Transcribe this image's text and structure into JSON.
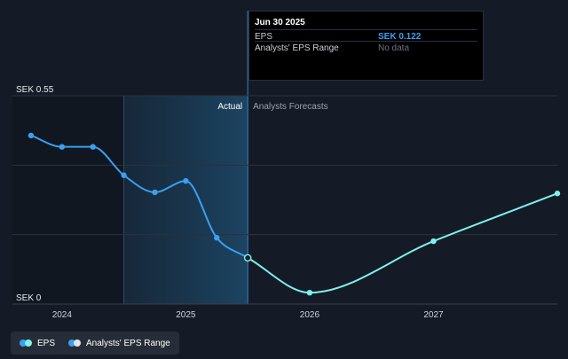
{
  "chart_data": {
    "type": "line",
    "currency": "SEK",
    "y_ticks": [
      {
        "value": 0.55,
        "label": "SEK 0.55"
      },
      {
        "value": 0,
        "label": "SEK 0"
      }
    ],
    "ylim": [
      0,
      0.55
    ],
    "x_ticks": [
      {
        "value": 2024,
        "label": "2024"
      },
      {
        "value": 2025,
        "label": "2025"
      },
      {
        "value": 2026,
        "label": "2026"
      },
      {
        "value": 2027,
        "label": "2027"
      }
    ],
    "xlim": [
      2023.6,
      2028.0
    ],
    "grid": true,
    "highlight_start": 2024.5,
    "divider_x": 2025.5,
    "region_labels": {
      "actual": "Actual",
      "forecast": "Analysts Forecasts"
    },
    "series": [
      {
        "name": "EPS",
        "color": "#3aa0f0",
        "points": [
          [
            2023.75,
            0.445
          ],
          [
            2024.0,
            0.415
          ],
          [
            2024.25,
            0.415
          ],
          [
            2024.5,
            0.34
          ],
          [
            2024.75,
            0.295
          ],
          [
            2025.0,
            0.325
          ],
          [
            2025.25,
            0.175
          ],
          [
            2025.5,
            0.122
          ]
        ]
      },
      {
        "name": "EPS forecast",
        "color": "#7ff0ea",
        "points": [
          [
            2025.5,
            0.122
          ],
          [
            2026.0,
            0.03
          ],
          [
            2027.0,
            0.166
          ],
          [
            2028.0,
            0.292
          ]
        ]
      }
    ],
    "legend": [
      {
        "label": "EPS",
        "colors": [
          "#3aa0f0",
          "#7ff0ea"
        ]
      },
      {
        "label": "Analysts' EPS Range",
        "colors": [
          "#3aa0f0",
          "#e0e6ee"
        ]
      }
    ],
    "legend_position": "bottom-left"
  },
  "tooltip": {
    "title": "Jun 30 2025",
    "rows": [
      {
        "label": "EPS",
        "value": "SEK 0.122",
        "color": "#3aa0f0",
        "bold": true
      },
      {
        "label": "Analysts' EPS Range",
        "value": "No data",
        "color": "#6b7280",
        "bold": false
      }
    ]
  }
}
